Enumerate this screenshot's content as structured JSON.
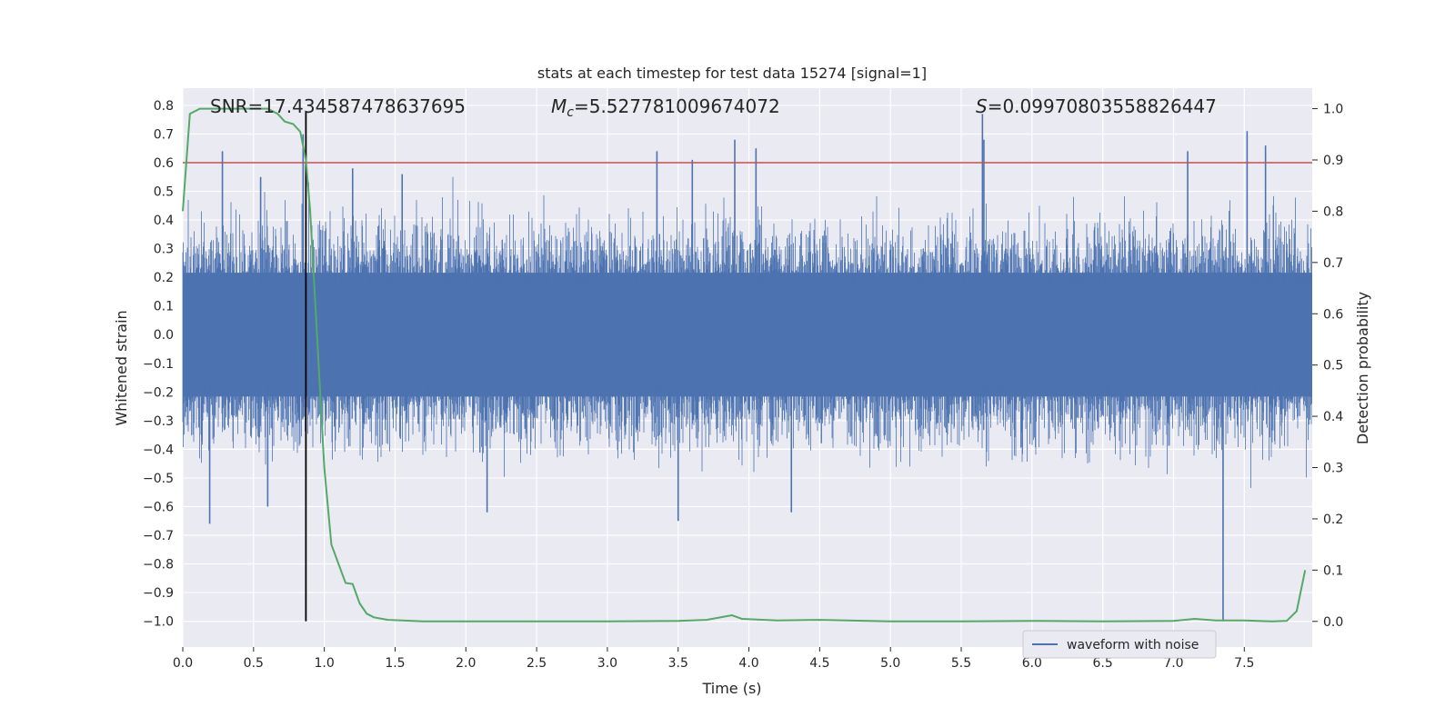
{
  "chart_data": {
    "type": "line",
    "title": "stats at each timestep for test data 15274 [signal=1]",
    "xlabel": "Time (s)",
    "ylabel_left": "Whitened strain",
    "ylabel_right": "Detection probability",
    "xlim": [
      0.0,
      7.98
    ],
    "ylim_left": [
      -1.09,
      0.86
    ],
    "ylim_right": [
      -0.05,
      1.04
    ],
    "grid": true,
    "legend_placement": "bottom-right",
    "x_ticks": [
      "0.0",
      "0.5",
      "1.0",
      "1.5",
      "2.0",
      "2.5",
      "3.0",
      "3.5",
      "4.0",
      "4.5",
      "5.0",
      "5.5",
      "6.0",
      "6.5",
      "7.0",
      "7.5"
    ],
    "y_left_ticks": [
      "−1.0",
      "−0.9",
      "−0.8",
      "−0.7",
      "−0.6",
      "−0.5",
      "−0.4",
      "−0.3",
      "−0.2",
      "−0.1",
      "0.0",
      "0.1",
      "0.2",
      "0.3",
      "0.4",
      "0.5",
      "0.6",
      "0.7",
      "0.8"
    ],
    "y_right_ticks": [
      "0.0",
      "0.1",
      "0.2",
      "0.3",
      "0.4",
      "0.5",
      "0.6",
      "0.7",
      "0.8",
      "0.9",
      "1.0"
    ],
    "annotations": {
      "snr": "SNR=17.434587478637695",
      "mc_symbol": "M",
      "mc_sub": "c",
      "mc_value": "=5.527781009674072",
      "s_symbol": "S",
      "s_value": "=0.09970803558826447"
    },
    "threshold": {
      "y": 0.6,
      "color": "#c44e52"
    },
    "event_marker": {
      "x": 0.87,
      "y_min": -1.0,
      "y_max": 0.78,
      "color": "#000000"
    },
    "series": [
      {
        "name": "waveform with noise",
        "axis": "left",
        "color": "#4c72b0",
        "kind": "dense-noise",
        "typical_abs_max": 0.3,
        "spikes": [
          [
            0.19,
            -0.66
          ],
          [
            0.28,
            0.64
          ],
          [
            0.55,
            0.55
          ],
          [
            0.6,
            -0.6
          ],
          [
            0.85,
            0.7
          ],
          [
            1.2,
            0.58
          ],
          [
            1.55,
            0.56
          ],
          [
            2.15,
            -0.62
          ],
          [
            3.35,
            0.64
          ],
          [
            3.5,
            -0.65
          ],
          [
            3.6,
            0.61
          ],
          [
            3.9,
            0.68
          ],
          [
            4.05,
            0.65
          ],
          [
            4.3,
            -0.62
          ],
          [
            5.65,
            0.77
          ],
          [
            5.66,
            0.68
          ],
          [
            7.1,
            0.64
          ],
          [
            7.35,
            -1.0
          ],
          [
            7.52,
            0.71
          ],
          [
            7.65,
            0.66
          ]
        ]
      },
      {
        "name": "detection probability",
        "axis": "right",
        "color": "#55a868",
        "x": [
          0.0,
          0.05,
          0.12,
          0.2,
          0.3,
          0.4,
          0.5,
          0.6,
          0.67,
          0.72,
          0.78,
          0.83,
          0.87,
          0.9,
          0.95,
          1.0,
          1.05,
          1.15,
          1.2,
          1.25,
          1.3,
          1.35,
          1.45,
          1.55,
          1.7,
          2.0,
          2.5,
          3.0,
          3.5,
          3.7,
          3.88,
          3.95,
          4.2,
          4.5,
          5.0,
          5.5,
          6.0,
          6.5,
          7.0,
          7.15,
          7.3,
          7.5,
          7.7,
          7.8,
          7.87,
          7.93
        ],
        "y": [
          0.8,
          0.99,
          1.0,
          1.0,
          1.0,
          1.0,
          1.0,
          1.0,
          0.99,
          0.975,
          0.97,
          0.955,
          0.9,
          0.8,
          0.55,
          0.3,
          0.15,
          0.075,
          0.073,
          0.035,
          0.015,
          0.008,
          0.003,
          0.002,
          0.0,
          0.0,
          0.0,
          0.0,
          0.001,
          0.003,
          0.012,
          0.005,
          0.002,
          0.003,
          0.0,
          0.0,
          0.001,
          0.0,
          0.001,
          0.005,
          0.002,
          0.002,
          0.0,
          0.001,
          0.02,
          0.1
        ]
      }
    ]
  }
}
